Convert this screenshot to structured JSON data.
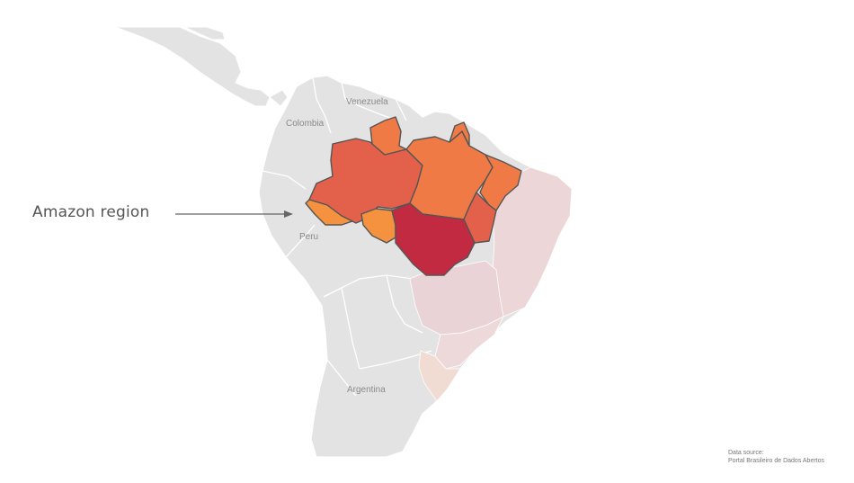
{
  "map": {
    "countries": {
      "venezuela": "Venezuela",
      "colombia": "Colombia",
      "peru": "Peru",
      "argentina": "Argentina"
    },
    "annotation": "Amazon region",
    "source": {
      "line1": "Data source:",
      "line2": "Portal Brasileiro de Dados Abertos"
    },
    "colors": {
      "land": "#e3e3e3",
      "border": "#ffffff",
      "amazon_light": "#f5923f",
      "amazon_mid": "#ef7a45",
      "amazon_dark": "#e3614a",
      "mato_grosso": "#c22a42",
      "other_states": "#ecd6d8",
      "south_states": "#f0dcd3",
      "highlight_outline": "#555555"
    },
    "regions": [
      {
        "name": "Amazonas",
        "level": "dark"
      },
      {
        "name": "Pará",
        "level": "mid"
      },
      {
        "name": "Roraima",
        "level": "mid"
      },
      {
        "name": "Amapá",
        "level": "mid"
      },
      {
        "name": "Acre",
        "level": "light"
      },
      {
        "name": "Rondônia",
        "level": "light"
      },
      {
        "name": "Maranhão",
        "level": "mid"
      },
      {
        "name": "Tocantins",
        "level": "dark"
      },
      {
        "name": "Mato Grosso",
        "level": "darkest"
      }
    ]
  }
}
